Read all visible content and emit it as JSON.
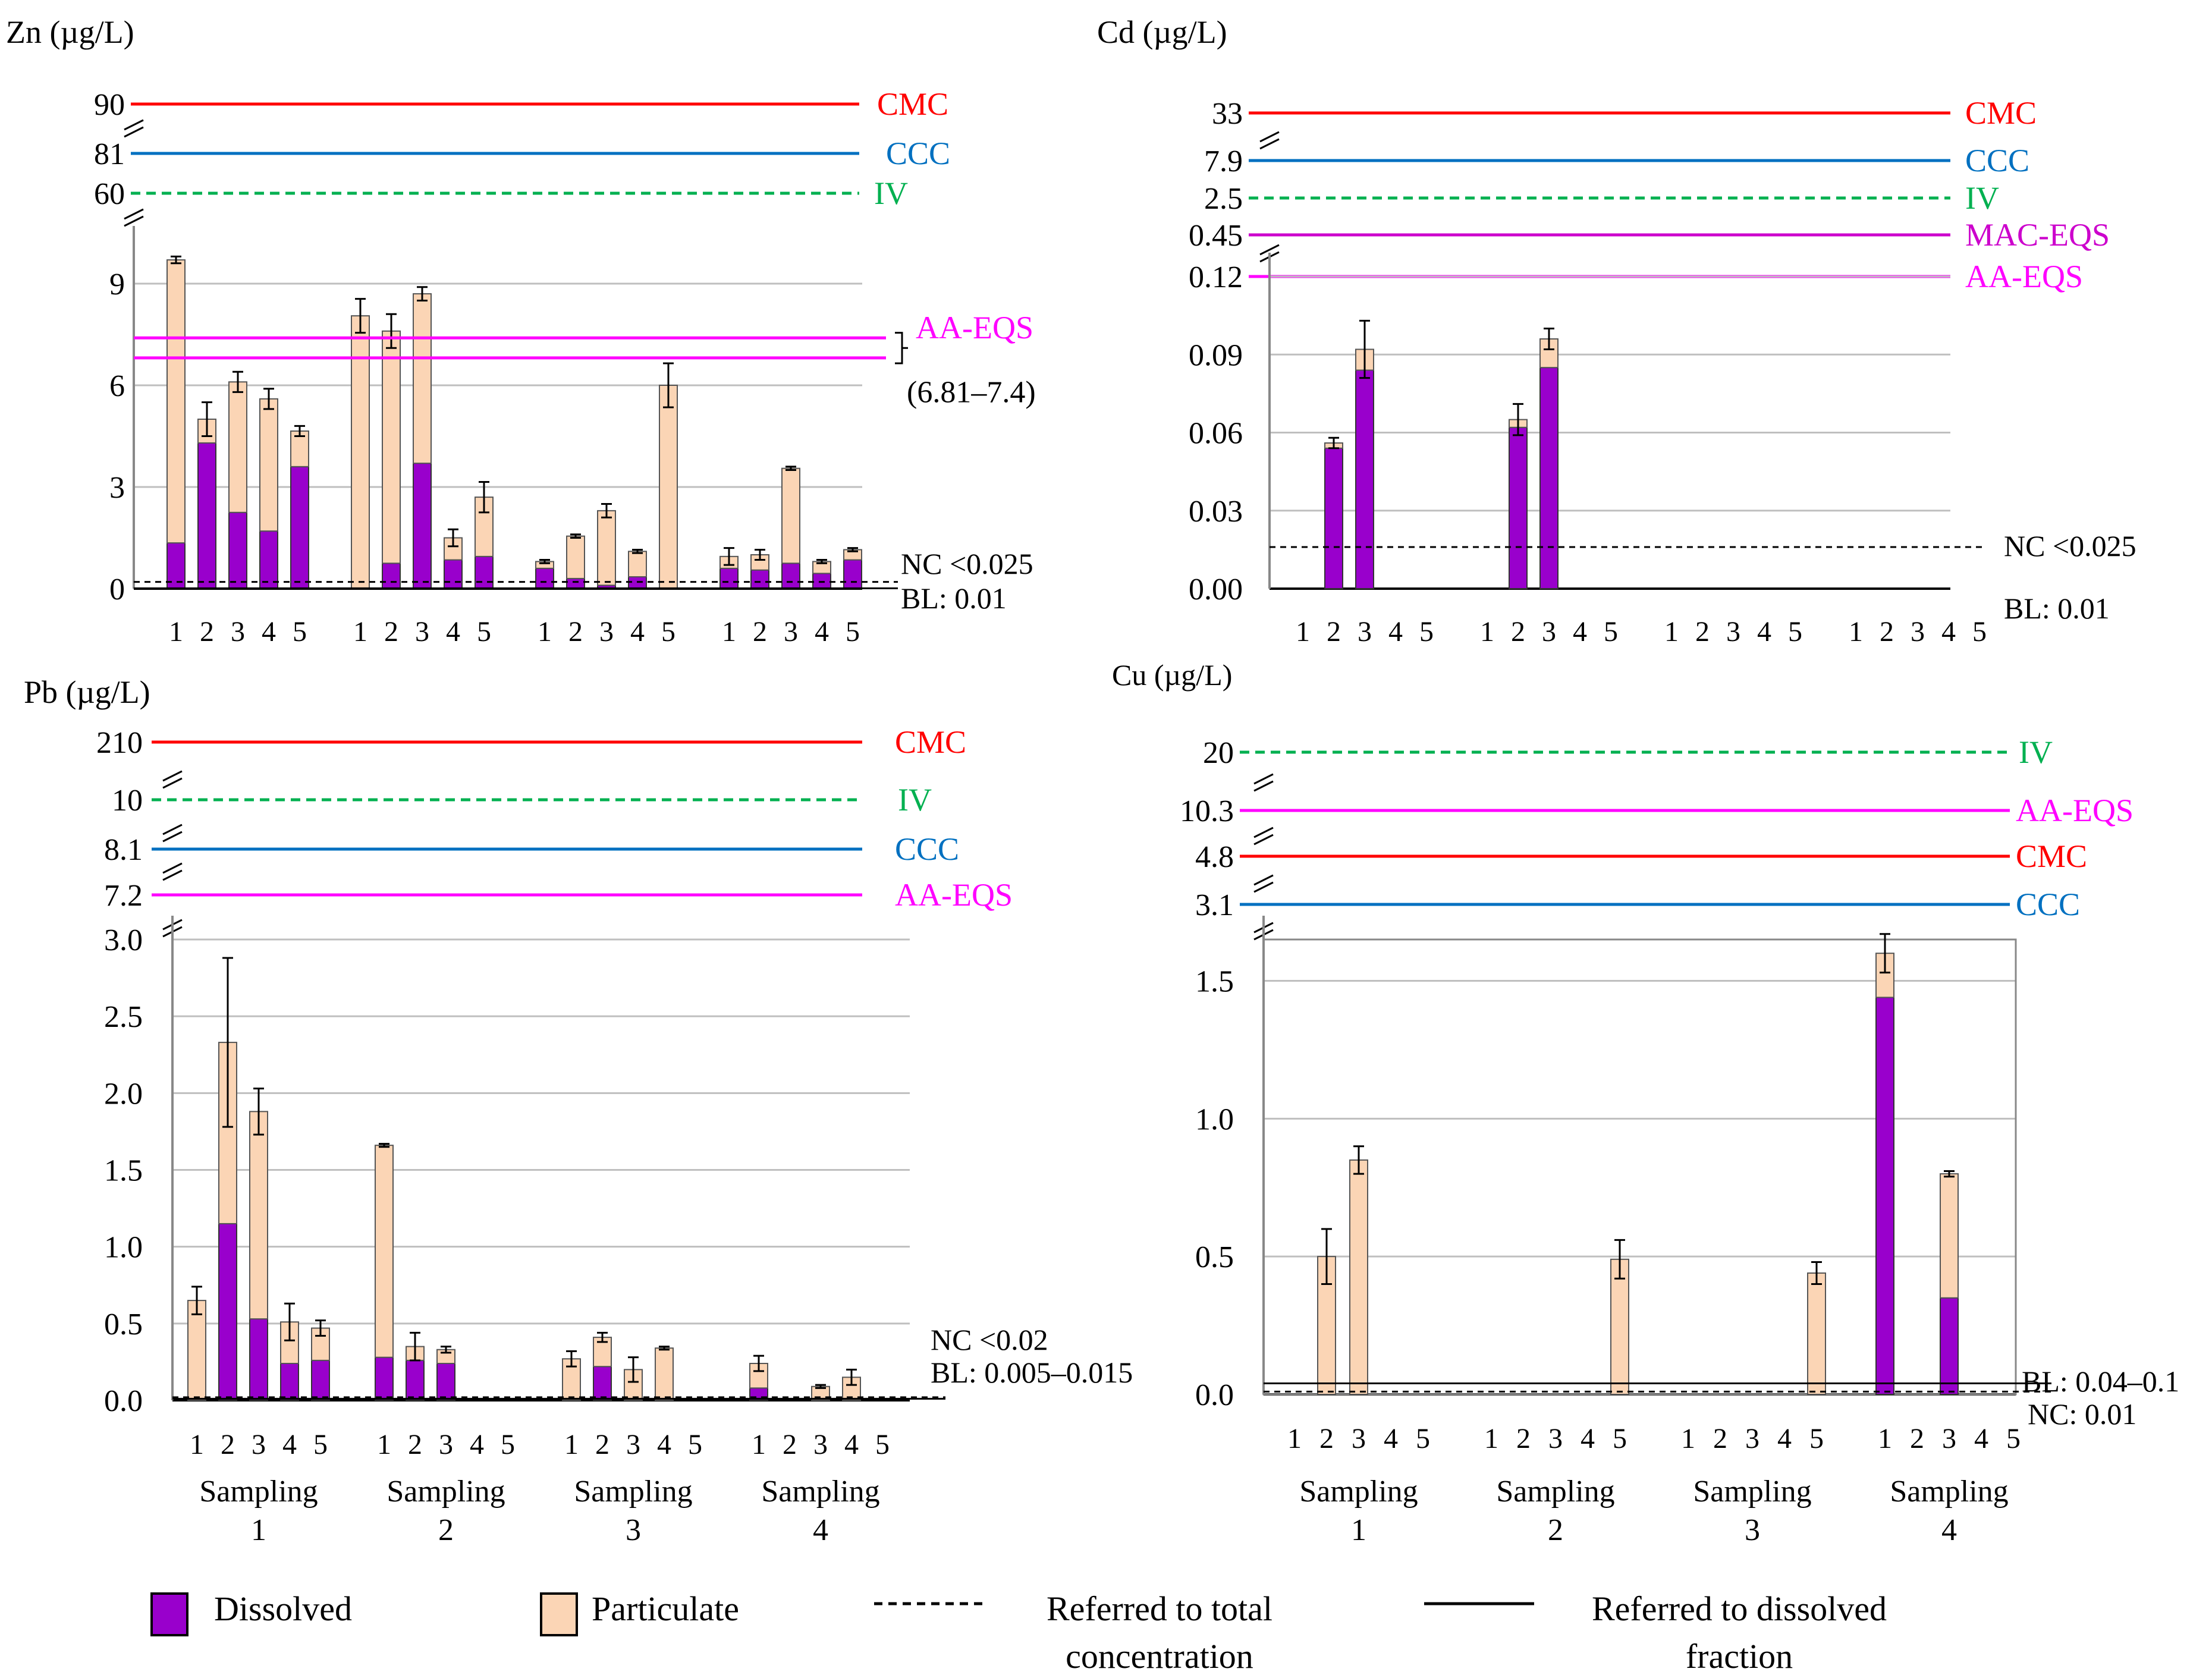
{
  "colors": {
    "dissolved": "#9900cc",
    "particulate": "#fbd5b5",
    "cmc": "#ff0000",
    "ccc": "#0070c0",
    "iv": "#00b050",
    "aa_eqs": "#ff00ff",
    "mac_eqs": "#cc00cc",
    "grid": "#bfbfbf",
    "axis": "#000000"
  },
  "chart_data": [
    {
      "id": "zn",
      "type": "bar",
      "stacked": true,
      "title": "Zn (µg/L)",
      "ylim": [
        0,
        10
      ],
      "yticks": [
        0,
        3,
        6,
        9
      ],
      "ytick_labels": [
        "0",
        "3",
        "6",
        "9"
      ],
      "upper_ticks": [
        "90",
        "81",
        "60"
      ],
      "categories": [
        "1",
        "2",
        "3",
        "4",
        "5",
        "1",
        "2",
        "3",
        "4",
        "5",
        "1",
        "2",
        "3",
        "4",
        "5",
        "1",
        "2",
        "3",
        "4",
        "5"
      ],
      "series": [
        {
          "name": "Dissolved",
          "values": [
            1.35,
            4.3,
            2.25,
            1.7,
            3.6,
            0,
            0.75,
            3.7,
            0.85,
            0.95,
            0.6,
            0.3,
            0.1,
            0.35,
            0,
            0.6,
            0.55,
            0.75,
            0.45,
            0.85
          ]
        },
        {
          "name": "Particulate",
          "values": [
            8.35,
            0.7,
            3.85,
            3.9,
            1.05,
            8.05,
            6.85,
            5.0,
            0.65,
            1.75,
            0.2,
            1.25,
            2.2,
            0.75,
            6.0,
            0.35,
            0.45,
            2.8,
            0.35,
            0.3
          ]
        }
      ],
      "errors": [
        0.1,
        0.5,
        0.3,
        0.3,
        0.15,
        0.5,
        0.5,
        0.2,
        0.25,
        0.45,
        0.05,
        0.05,
        0.2,
        0.05,
        0.65,
        0.25,
        0.15,
        0.05,
        0.05,
        0.05
      ],
      "ref_lines": [
        {
          "label": "CMC",
          "value": "90",
          "color": "cmc",
          "style": "solid"
        },
        {
          "label": "CCC",
          "value": "81",
          "color": "ccc",
          "style": "solid"
        },
        {
          "label": "IV",
          "value": "60",
          "color": "iv",
          "style": "dashed"
        }
      ],
      "aa_eqs": {
        "label": "AA-EQS",
        "range_label": "(6.81–7.4)",
        "values": [
          6.81,
          7.4
        ]
      },
      "nc_label": "NC  <0.025",
      "bl_label": "BL: 0.01",
      "dissolved_line": 0.01,
      "total_line": 0.2
    },
    {
      "id": "cd",
      "type": "bar",
      "stacked": true,
      "title": "Cd (µg/L)",
      "ylim": [
        0,
        0.12
      ],
      "yticks": [
        0,
        0.03,
        0.06,
        0.09,
        0.12
      ],
      "ytick_labels": [
        "0.00",
        "0.03",
        "0.06",
        "0.09",
        "0.12"
      ],
      "upper_ticks": [
        "33",
        "7.9",
        "2.5",
        "0.45"
      ],
      "categories": [
        "1",
        "2",
        "3",
        "4",
        "5",
        "1",
        "2",
        "3",
        "4",
        "5",
        "1",
        "2",
        "3",
        "4",
        "5",
        "1",
        "2",
        "3",
        "4",
        "5"
      ],
      "series": [
        {
          "name": "Dissolved",
          "values": [
            0,
            0.054,
            0.084,
            0,
            0,
            0,
            0.062,
            0.085,
            0,
            0,
            0,
            0,
            0,
            0,
            0,
            0,
            0,
            0,
            0,
            0
          ]
        },
        {
          "name": "Particulate",
          "values": [
            0,
            0.002,
            0.008,
            0,
            0,
            0,
            0.003,
            0.011,
            0,
            0,
            0,
            0,
            0,
            0,
            0,
            0,
            0,
            0,
            0,
            0
          ]
        }
      ],
      "errors": [
        0,
        0.002,
        0.011,
        0,
        0,
        0,
        0.006,
        0.004,
        0,
        0,
        0,
        0,
        0,
        0,
        0,
        0,
        0,
        0,
        0,
        0
      ],
      "ref_lines": [
        {
          "label": "CMC",
          "value": "33",
          "color": "cmc",
          "style": "solid"
        },
        {
          "label": "CCC",
          "value": "7.9",
          "color": "ccc",
          "style": "solid"
        },
        {
          "label": "IV",
          "value": "2.5",
          "color": "iv",
          "style": "dashed"
        },
        {
          "label": "MAC-EQS",
          "value": "0.45",
          "color": "mac_eqs",
          "style": "solid"
        },
        {
          "label": "AA-EQS",
          "value": "0.12",
          "color": "aa_eqs",
          "style": "solid"
        }
      ],
      "nc_label": "NC  <0.025",
      "bl_label": "BL: 0.01",
      "dissolved_line": 0,
      "total_line": 0.016
    },
    {
      "id": "pb",
      "type": "bar",
      "stacked": true,
      "title": "Pb (µg/L)",
      "ylim": [
        0,
        3.0
      ],
      "yticks": [
        0,
        0.5,
        1.0,
        1.5,
        2.0,
        2.5,
        3.0
      ],
      "ytick_labels": [
        "0.0",
        "0.5",
        "1.0",
        "1.5",
        "2.0",
        "2.5",
        "3.0"
      ],
      "upper_ticks": [
        "210",
        "10",
        "8.1",
        "7.2"
      ],
      "categories": [
        "1",
        "2",
        "3",
        "4",
        "5",
        "1",
        "2",
        "3",
        "4",
        "5",
        "1",
        "2",
        "3",
        "4",
        "5",
        "1",
        "2",
        "3",
        "4",
        "5"
      ],
      "series": [
        {
          "name": "Dissolved",
          "values": [
            0,
            1.15,
            0.53,
            0.24,
            0.26,
            0.28,
            0.26,
            0.24,
            0,
            0,
            0,
            0.22,
            0,
            0,
            0,
            0.08,
            0,
            0,
            0,
            0
          ]
        },
        {
          "name": "Particulate",
          "values": [
            0.65,
            1.18,
            1.35,
            0.27,
            0.21,
            1.38,
            0.09,
            0.09,
            0,
            0,
            0.27,
            0.19,
            0.2,
            0.34,
            0,
            0.16,
            0,
            0.09,
            0.15,
            0
          ]
        },
        {
          "name": "Total",
          "values": [
            0.65,
            2.33,
            1.88,
            0.51,
            0.47,
            1.66,
            0.35,
            0.33,
            0,
            0,
            0.27,
            0.41,
            0.2,
            0.34,
            0,
            0.24,
            0,
            0.09,
            0.15,
            0
          ]
        }
      ],
      "errors": [
        0.09,
        0.55,
        0.15,
        0.12,
        0.05,
        0.01,
        0.09,
        0.02,
        0,
        0,
        0.05,
        0.03,
        0.08,
        0.01,
        0,
        0.05,
        0,
        0.01,
        0.05,
        0
      ],
      "ref_lines": [
        {
          "label": "CMC",
          "value": "210",
          "color": "cmc",
          "style": "solid"
        },
        {
          "label": "IV",
          "value": "10",
          "color": "iv",
          "style": "dashed"
        },
        {
          "label": "CCC",
          "value": "8.1",
          "color": "ccc",
          "style": "solid"
        },
        {
          "label": "AA-EQS",
          "value": "7.2",
          "color": "aa_eqs",
          "style": "solid"
        }
      ],
      "nc_label": "NC  <0.02",
      "bl_label": "BL: 0.005–0.015",
      "dissolved_line": 0.01,
      "total_line": 0.02,
      "group_labels": [
        "Sampling",
        "Sampling",
        "Sampling",
        "Sampling"
      ],
      "group_numbers": [
        "1",
        "2",
        "3",
        "4"
      ]
    },
    {
      "id": "cu",
      "type": "bar",
      "stacked": true,
      "title": "Cu (µg/L)",
      "ylim": [
        0,
        1.65
      ],
      "yticks": [
        0,
        0.5,
        1.0,
        1.5
      ],
      "ytick_labels": [
        "0.0",
        "0.5",
        "1.0",
        "1.5"
      ],
      "upper_ticks": [
        "20",
        "10.3",
        "4.8",
        "3.1"
      ],
      "categories": [
        "1",
        "2",
        "3",
        "4",
        "5",
        "1",
        "2",
        "3",
        "4",
        "5",
        "1",
        "2",
        "3",
        "4",
        "5",
        "1",
        "2",
        "3",
        "4",
        "5"
      ],
      "series": [
        {
          "name": "Dissolved",
          "values": [
            0,
            0,
            0,
            0,
            0,
            0,
            0,
            0,
            0,
            0,
            0,
            0,
            0,
            0,
            0,
            1.44,
            0,
            0.35,
            0,
            0
          ]
        },
        {
          "name": "Particulate",
          "values": [
            0,
            0.5,
            0.85,
            0,
            0,
            0,
            0,
            0,
            0,
            0.49,
            0,
            0,
            0,
            0,
            0.44,
            0.16,
            0,
            0.45,
            0,
            0
          ]
        }
      ],
      "errors": [
        0,
        0.1,
        0.05,
        0,
        0,
        0,
        0,
        0,
        0,
        0.07,
        0,
        0,
        0,
        0,
        0.04,
        0.07,
        0,
        0.01,
        0,
        0
      ],
      "ref_lines": [
        {
          "label": "IV",
          "value": "20",
          "color": "iv",
          "style": "dashed"
        },
        {
          "label": "AA-EQS",
          "value": "10.3",
          "color": "aa_eqs",
          "style": "solid"
        },
        {
          "label": "CMC",
          "value": "4.8",
          "color": "cmc",
          "style": "solid"
        },
        {
          "label": "CCC",
          "value": "3.1",
          "color": "ccc",
          "style": "solid"
        }
      ],
      "nc_label": "NC: 0.01",
      "bl_label": "BL: 0.04–0.1",
      "dissolved_line": 0.04,
      "total_line": 0.01,
      "group_labels": [
        "Sampling",
        "Sampling",
        "Sampling",
        "Sampling"
      ],
      "group_numbers": [
        "1",
        "2",
        "3",
        "4"
      ]
    }
  ],
  "legend": {
    "dissolved": "Dissolved",
    "particulate": "Particulate",
    "total_line_1": "Referred to total",
    "total_line_2": "concentration",
    "dissolved_line_1": "Referred to dissolved",
    "dissolved_line_2": "fraction"
  }
}
